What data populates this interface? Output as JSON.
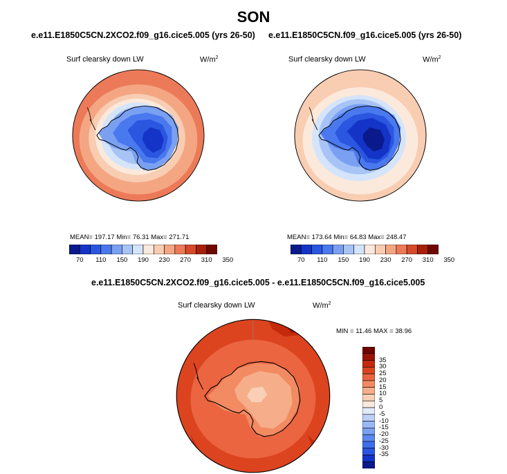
{
  "page": {
    "season": "SON",
    "diff_title": "e.e11.E1850C5CN.2XCO2.f09_g16.cice5.005 - e.e11.E1850C5CN.f09_g16.cice5.005"
  },
  "panels": [
    {
      "case": "e.e11.E1850C5CN.2XCO2.f09_g16.cice5.005 (yrs 26-50)",
      "variable": "Surf clearsky down LW",
      "unit_base": "W/m",
      "unit_exp": "2",
      "stats": "MEAN= 197.17  Min= 76.31  Max= 271.71"
    },
    {
      "case": "e.e11.E1850C5CN.f09_g16.cice5.005 (yrs 26-50)",
      "variable": "Surf clearsky down LW",
      "unit_base": "W/m",
      "unit_exp": "2",
      "stats": "MEAN= 173.64  Min= 64.83  Max= 248.47"
    },
    {
      "variable": "Surf clearsky down LW",
      "unit_base": "W/m",
      "unit_exp": "2",
      "stats": "MIN =  11.46 MAX =  38.96"
    }
  ],
  "colors": {
    "abs_palette": [
      "#0a1a8c",
      "#1434c8",
      "#2a56e0",
      "#4a78ee",
      "#7aa0f2",
      "#a8c4f6",
      "#d4e4fa",
      "#fbe9dc",
      "#f8cdb2",
      "#f4a682",
      "#ec7a58",
      "#d64a2c",
      "#a8200c",
      "#700600"
    ],
    "diff_palette": [
      "#0a1a8c",
      "#1434c8",
      "#2a56e0",
      "#3f6eea",
      "#5c88ee",
      "#7aa0f2",
      "#9ab8f4",
      "#bcd0f8",
      "#dfeafb",
      "#fbe9dc",
      "#f9cfb5",
      "#f6ae8a",
      "#f28a62",
      "#ea6540",
      "#dc4420",
      "#c42a0c",
      "#9a1406",
      "#6e0400"
    ],
    "coastline": "#000000"
  },
  "chart_data": [
    {
      "type": "heatmap",
      "projection": "south-polar-stereographic",
      "title": "e.e11.E1850C5CN.2XCO2.f09_g16.cice5.005 (yrs 26-50)",
      "variable": "Surf clearsky down LW",
      "units": "W/m2",
      "mean": 197.17,
      "min": 76.31,
      "max": 271.71,
      "colorbar_levels": [
        70,
        90,
        110,
        130,
        150,
        170,
        190,
        210,
        230,
        250,
        270,
        290,
        310,
        330,
        350
      ],
      "colorbar_labels": [
        "70",
        "110",
        "150",
        "190",
        "230",
        "270",
        "310",
        "350"
      ]
    },
    {
      "type": "heatmap",
      "projection": "south-polar-stereographic",
      "title": "e.e11.E1850C5CN.f09_g16.cice5.005 (yrs 26-50)",
      "variable": "Surf clearsky down LW",
      "units": "W/m2",
      "mean": 173.64,
      "min": 64.83,
      "max": 248.47,
      "colorbar_levels": [
        70,
        90,
        110,
        130,
        150,
        170,
        190,
        210,
        230,
        250,
        270,
        290,
        310,
        330,
        350
      ],
      "colorbar_labels": [
        "70",
        "110",
        "150",
        "190",
        "230",
        "270",
        "310",
        "350"
      ]
    },
    {
      "type": "heatmap",
      "projection": "south-polar-stereographic",
      "title": "e.e11.E1850C5CN.2XCO2.f09_g16.cice5.005 - e.e11.E1850C5CN.f09_g16.cice5.005",
      "variable": "Surf clearsky down LW",
      "units": "W/m2",
      "min": 11.46,
      "max": 38.96,
      "colorbar_levels": [
        -35,
        -30,
        -25,
        -20,
        -15,
        -10,
        -5,
        0,
        5,
        10,
        15,
        20,
        25,
        30,
        35
      ],
      "colorbar_labels": [
        "35",
        "30",
        "25",
        "20",
        "15",
        "10",
        "5",
        "0",
        "-5",
        "-10",
        "-15",
        "-20",
        "-25",
        "-30",
        "-35"
      ]
    }
  ]
}
